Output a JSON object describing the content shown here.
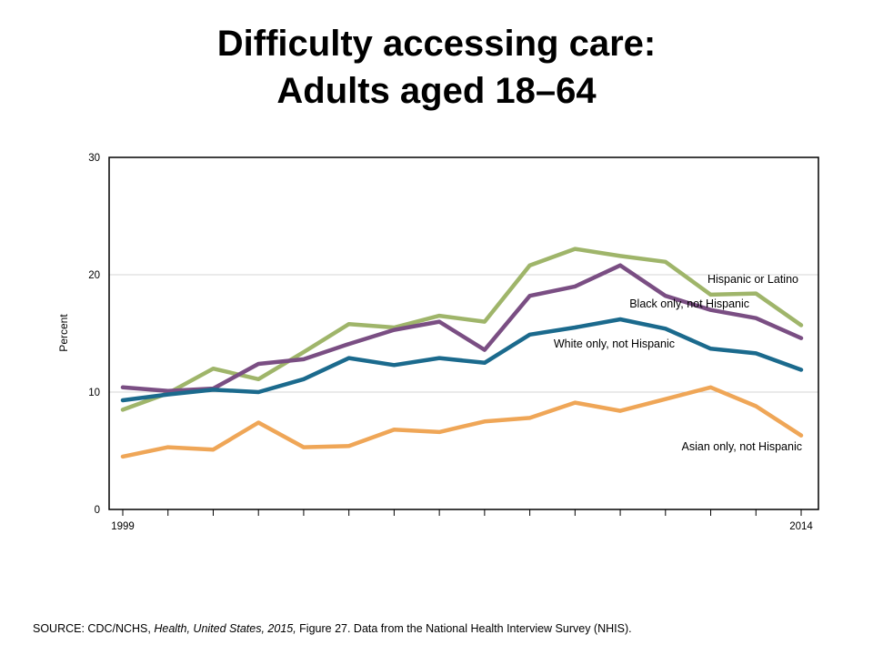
{
  "title": {
    "line1": "Difficulty accessing care:",
    "line2": "Adults aged 18–64"
  },
  "source": {
    "prefix": "SOURCE: CDC/NCHS, ",
    "publication": "Health, United States, 2015,",
    "suffix": " Figure 27. Data from the National Health Interview Survey (NHIS)."
  },
  "chart_data": {
    "type": "line",
    "ylabel": "Percent",
    "xlabel": "",
    "ylim": [
      0,
      30
    ],
    "yticks": [
      0,
      10,
      20,
      30
    ],
    "x": [
      1999,
      2000,
      2001,
      2002,
      2003,
      2004,
      2005,
      2006,
      2007,
      2008,
      2009,
      2010,
      2011,
      2012,
      2013,
      2014
    ],
    "xtick_labels": [
      {
        "x": 1999,
        "label": "1999"
      },
      {
        "x": 2014,
        "label": "2014"
      }
    ],
    "grid": "horizontal",
    "series": [
      {
        "name": "Hispanic or Latino",
        "color": "#9fb56a",
        "values": [
          8.5,
          9.9,
          12.0,
          11.1,
          13.4,
          15.8,
          15.5,
          16.5,
          16.0,
          20.8,
          22.2,
          21.6,
          21.1,
          18.3,
          18.4,
          15.7
        ]
      },
      {
        "name": "Black only, not Hispanic",
        "color": "#7a4e83",
        "values": [
          10.4,
          10.1,
          10.3,
          12.4,
          12.8,
          14.1,
          15.3,
          16.0,
          13.6,
          18.2,
          19.0,
          20.8,
          18.2,
          17.0,
          16.3,
          14.6
        ]
      },
      {
        "name": "White only, not Hispanic",
        "color": "#1b6a8d",
        "values": [
          9.3,
          9.8,
          10.2,
          10.0,
          11.1,
          12.9,
          12.3,
          12.9,
          12.5,
          14.9,
          15.5,
          16.2,
          15.4,
          13.7,
          13.3,
          11.9
        ]
      },
      {
        "name": "Asian only, not Hispanic",
        "color": "#efa657",
        "values": [
          4.5,
          5.3,
          5.1,
          7.4,
          5.3,
          5.4,
          6.8,
          6.6,
          7.5,
          7.8,
          9.1,
          8.4,
          9.4,
          10.4,
          8.8,
          6.3
        ]
      }
    ]
  }
}
